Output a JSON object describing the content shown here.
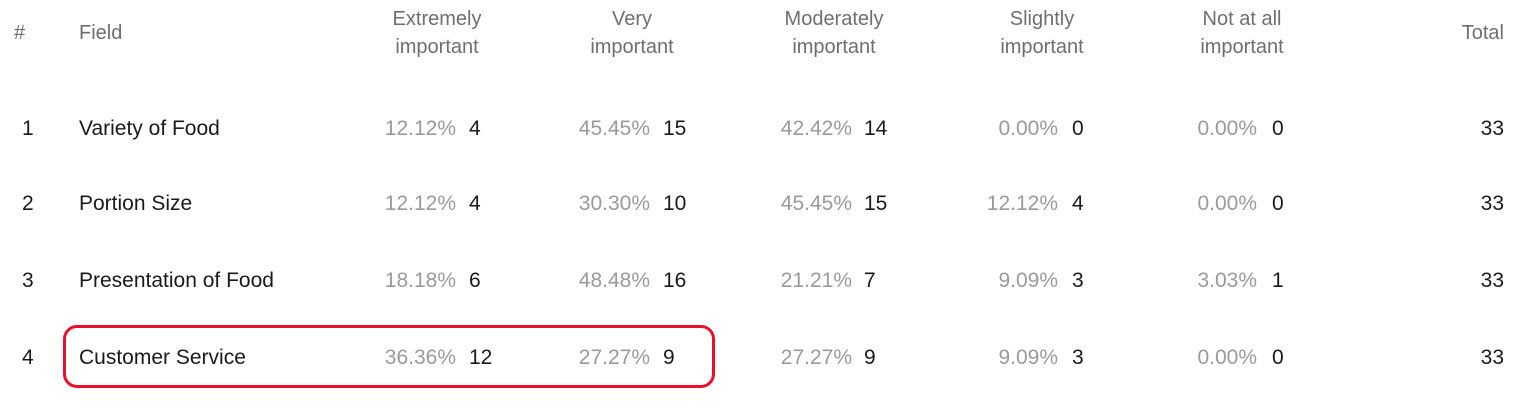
{
  "table": {
    "headers": {
      "num": "#",
      "field": "Field",
      "extremely": [
        "Extremely",
        "important"
      ],
      "very": [
        "Very",
        "important"
      ],
      "moderately": [
        "Moderately",
        "important"
      ],
      "slightly": [
        "Slightly",
        "important"
      ],
      "notatall": [
        "Not at all",
        "important"
      ],
      "total": "Total"
    },
    "rows": [
      {
        "num": "1",
        "field": "Variety of Food",
        "cells": [
          [
            "12.12%",
            "4"
          ],
          [
            "45.45%",
            "15"
          ],
          [
            "42.42%",
            "14"
          ],
          [
            "0.00%",
            "0"
          ],
          [
            "0.00%",
            "0"
          ]
        ],
        "total": "33"
      },
      {
        "num": "2",
        "field": "Portion Size",
        "cells": [
          [
            "12.12%",
            "4"
          ],
          [
            "30.30%",
            "10"
          ],
          [
            "45.45%",
            "15"
          ],
          [
            "12.12%",
            "4"
          ],
          [
            "0.00%",
            "0"
          ]
        ],
        "total": "33"
      },
      {
        "num": "3",
        "field": "Presentation of Food",
        "cells": [
          [
            "18.18%",
            "6"
          ],
          [
            "48.48%",
            "16"
          ],
          [
            "21.21%",
            "7"
          ],
          [
            "9.09%",
            "3"
          ],
          [
            "3.03%",
            "1"
          ]
        ],
        "total": "33"
      },
      {
        "num": "4",
        "field": "Customer Service",
        "cells": [
          [
            "36.36%",
            "12"
          ],
          [
            "27.27%",
            "9"
          ],
          [
            "27.27%",
            "9"
          ],
          [
            "9.09%",
            "3"
          ],
          [
            "0.00%",
            "0"
          ]
        ],
        "total": "33"
      }
    ]
  },
  "colors": {
    "header_text": "#6f6f6f",
    "percent_text": "#9a9a9a",
    "body_text": "#1a1a1a",
    "highlight_border": "#e8112d"
  }
}
